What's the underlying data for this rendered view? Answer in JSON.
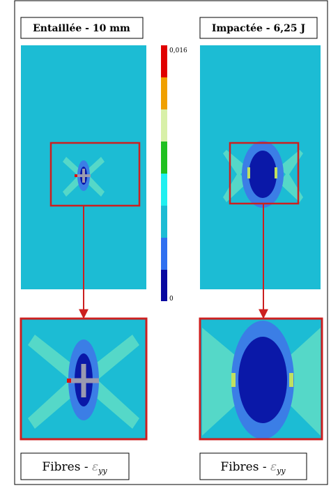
{
  "panels": [
    {
      "title": "Entaillée - 10 mm",
      "caption": {
        "text": "Fibres -",
        "symbol": "ε",
        "subscript": "yy"
      }
    },
    {
      "title": "Impactée - 6,25 J",
      "caption": {
        "text": "Fibres -",
        "symbol": "ε",
        "subscript": "yy"
      }
    }
  ],
  "colorbar": {
    "max_label": "0,016",
    "min_label": "0"
  }
}
